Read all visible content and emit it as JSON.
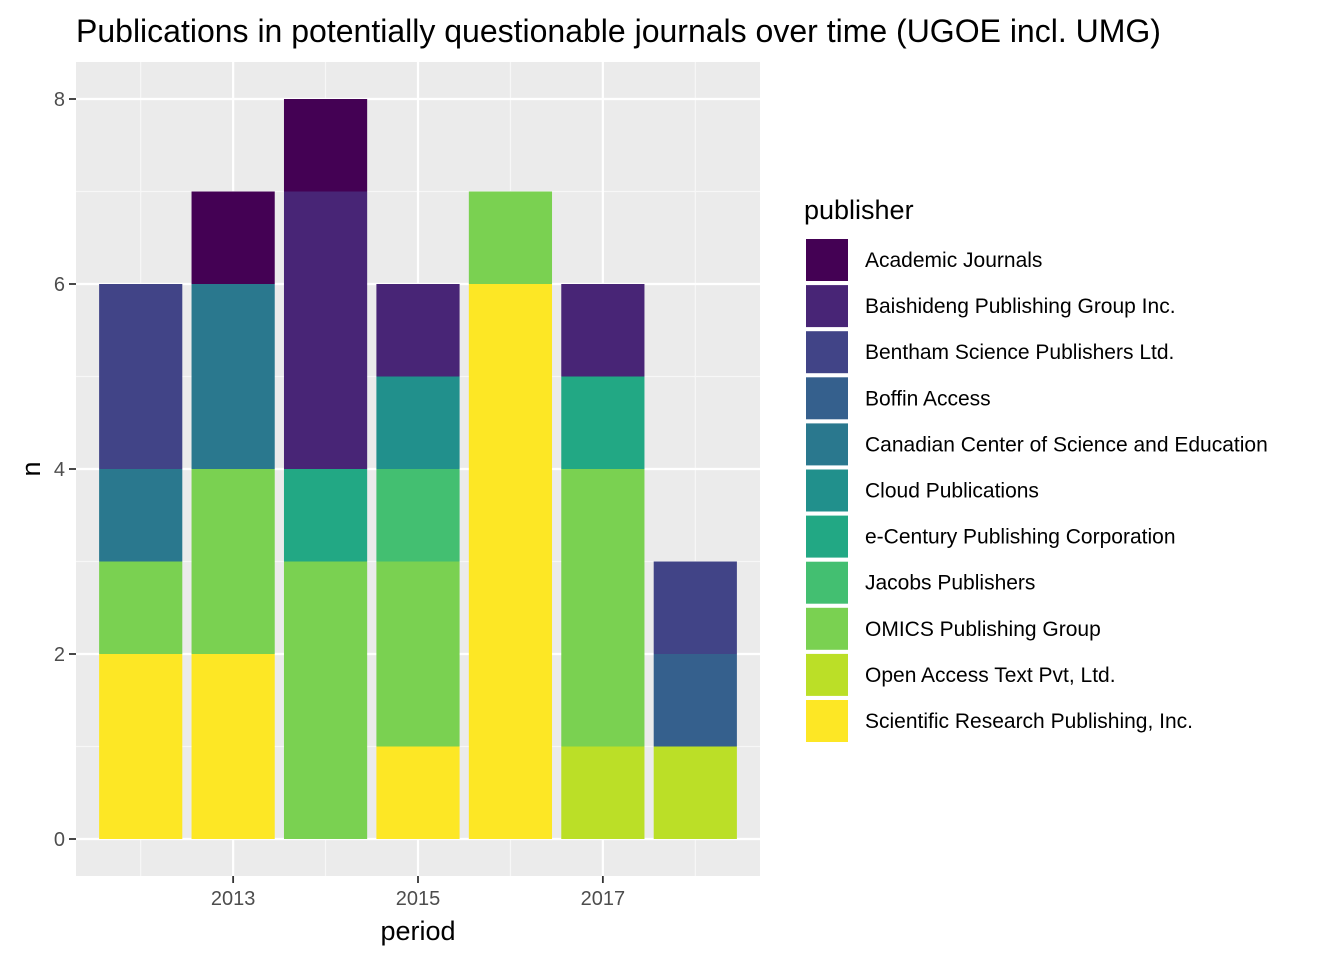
{
  "chart_data": {
    "type": "bar",
    "stacked": true,
    "title": "Publications in potentially questionable journals over time (UGOE incl. UMG)",
    "xlabel": "period",
    "ylabel": "n",
    "x": [
      2012,
      2013,
      2014,
      2015,
      2016,
      2017,
      2018
    ],
    "x_ticks": [
      2013,
      2015,
      2017
    ],
    "xlim": [
      2011.3,
      2018.7
    ],
    "ylim": [
      -0.4,
      8.4
    ],
    "y_ticks": [
      0,
      2,
      4,
      6,
      8
    ],
    "grid": true,
    "legend": {
      "title": "publisher",
      "position": "right"
    },
    "series": [
      {
        "name": "Academic Journals",
        "color": "#440154",
        "values": [
          0,
          1,
          1,
          0,
          0,
          0,
          0
        ]
      },
      {
        "name": "Baishideng Publishing Group Inc.",
        "color": "#482576",
        "values": [
          0,
          0,
          3,
          1,
          0,
          1,
          0
        ]
      },
      {
        "name": "Bentham Science Publishers Ltd.",
        "color": "#414487",
        "values": [
          2,
          0,
          0,
          0,
          0,
          0,
          1
        ]
      },
      {
        "name": "Boffin Access",
        "color": "#35608D",
        "values": [
          0,
          0,
          0,
          0,
          0,
          0,
          1
        ]
      },
      {
        "name": "Canadian Center of Science and Education",
        "color": "#2A788E",
        "values": [
          1,
          2,
          0,
          0,
          0,
          0,
          0
        ]
      },
      {
        "name": "Cloud Publications",
        "color": "#21908C",
        "values": [
          0,
          0,
          0,
          1,
          0,
          0,
          0
        ]
      },
      {
        "name": "e-Century Publishing Corporation",
        "color": "#22A884",
        "values": [
          0,
          0,
          1,
          0,
          0,
          1,
          0
        ]
      },
      {
        "name": "Jacobs Publishers",
        "color": "#43BF71",
        "values": [
          0,
          0,
          0,
          1,
          0,
          0,
          0
        ]
      },
      {
        "name": "OMICS Publishing Group",
        "color": "#7AD151",
        "values": [
          1,
          2,
          3,
          2,
          1,
          3,
          0
        ]
      },
      {
        "name": "Open Access Text Pvt, Ltd.",
        "color": "#BBDF27",
        "values": [
          0,
          0,
          0,
          0,
          0,
          1,
          1
        ]
      },
      {
        "name": "Scientific Research Publishing, Inc.",
        "color": "#FDE725",
        "values": [
          2,
          2,
          0,
          1,
          6,
          0,
          0
        ]
      }
    ]
  }
}
